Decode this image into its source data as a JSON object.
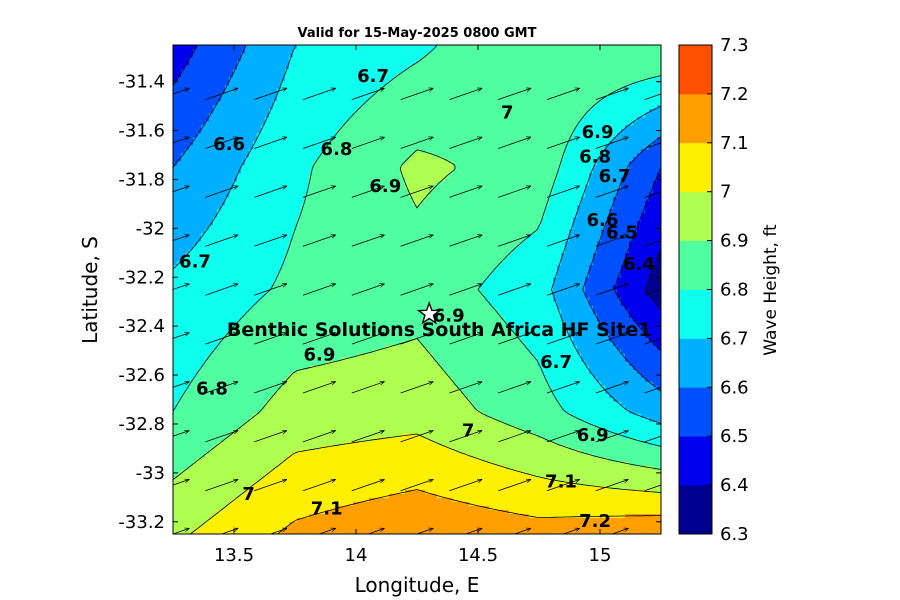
{
  "chart_data": {
    "type": "heatmap",
    "title": "Valid for 15-May-2025 0800 GMT",
    "xlabel": "Longitude, E",
    "ylabel": "Latitude, S",
    "xlim": [
      13.25,
      15.25
    ],
    "ylim": [
      -33.25,
      -31.25
    ],
    "x_ticks": [
      13.5,
      14,
      14.5,
      15
    ],
    "x_tick_labels": [
      "13.5",
      "14",
      "14.5",
      "15"
    ],
    "y_ticks": [
      -31.4,
      -31.6,
      -31.8,
      -32,
      -32.2,
      -32.4,
      -32.6,
      -32.8,
      -33,
      -33.2
    ],
    "y_tick_labels": [
      "-31.4",
      "-31.6",
      "-31.8",
      "-32",
      "-32.2",
      "-32.4",
      "-32.6",
      "-32.8",
      "-33",
      "-33.2"
    ],
    "colorbar": {
      "label": "Wave Height, ft",
      "levels": [
        6.3,
        6.4,
        6.5,
        6.6,
        6.7,
        6.8,
        6.9,
        7.0,
        7.1,
        7.2,
        7.3
      ],
      "tick_labels": [
        "6.3",
        "6.4",
        "6.5",
        "6.6",
        "6.7",
        "6.8",
        "6.9",
        "7",
        "7.1",
        "7.2",
        "7.3"
      ],
      "colors": [
        "#00008f",
        "#0000ef",
        "#0050ff",
        "#00afff",
        "#0fffef",
        "#50ff9f",
        "#afff50",
        "#ffef00",
        "#ff9f00",
        "#ff5000"
      ]
    },
    "grid_lons": [
      13.25,
      13.75,
      14.25,
      14.75,
      15.25
    ],
    "grid_lats": [
      -31.25,
      -31.75,
      -32.25,
      -32.75,
      -33.25
    ],
    "wave_height": [
      [
        6.45,
        6.7,
        6.78,
        6.9,
        6.9
      ],
      [
        6.6,
        6.78,
        6.92,
        6.86,
        6.5
      ],
      [
        6.72,
        6.82,
        6.86,
        6.74,
        6.35
      ],
      [
        6.8,
        6.94,
        6.96,
        6.84,
        6.65
      ],
      [
        6.98,
        7.12,
        7.18,
        7.14,
        7.18
      ]
    ],
    "wave_direction_deg": 55,
    "contour_labels": [
      {
        "text": "6.7",
        "lon": 13.34,
        "lat": -32.14
      },
      {
        "text": "6.6",
        "lon": 13.48,
        "lat": -31.66
      },
      {
        "text": "6.8",
        "lon": 13.92,
        "lat": -31.68
      },
      {
        "text": "6.7",
        "lon": 14.07,
        "lat": -31.38
      },
      {
        "text": "6.9",
        "lon": 14.12,
        "lat": -31.83
      },
      {
        "text": "7",
        "lon": 14.62,
        "lat": -31.53
      },
      {
        "text": "6.9",
        "lon": 14.99,
        "lat": -31.61
      },
      {
        "text": "6.8",
        "lon": 14.98,
        "lat": -31.71
      },
      {
        "text": "6.7",
        "lon": 15.06,
        "lat": -31.79
      },
      {
        "text": "6.6",
        "lon": 15.01,
        "lat": -31.97
      },
      {
        "text": "6.5",
        "lon": 15.09,
        "lat": -32.02
      },
      {
        "text": "6.4",
        "lon": 15.16,
        "lat": -32.15
      },
      {
        "text": "6.9",
        "lon": 14.38,
        "lat": -32.36
      },
      {
        "text": "6.7",
        "lon": 14.82,
        "lat": -32.55
      },
      {
        "text": "6.9",
        "lon": 13.85,
        "lat": -32.52
      },
      {
        "text": "6.8",
        "lon": 13.41,
        "lat": -32.66
      },
      {
        "text": "7",
        "lon": 14.46,
        "lat": -32.83
      },
      {
        "text": "6.9",
        "lon": 14.97,
        "lat": -32.85
      },
      {
        "text": "7.1",
        "lon": 14.84,
        "lat": -33.04
      },
      {
        "text": "7",
        "lon": 13.56,
        "lat": -33.09
      },
      {
        "text": "7.1",
        "lon": 13.88,
        "lat": -33.15
      },
      {
        "text": "7.2",
        "lon": 14.98,
        "lat": -33.2
      }
    ],
    "site": {
      "name": "Benthic Solutions South Africa HF Site1",
      "lon": 14.3,
      "lat": -32.35
    }
  }
}
